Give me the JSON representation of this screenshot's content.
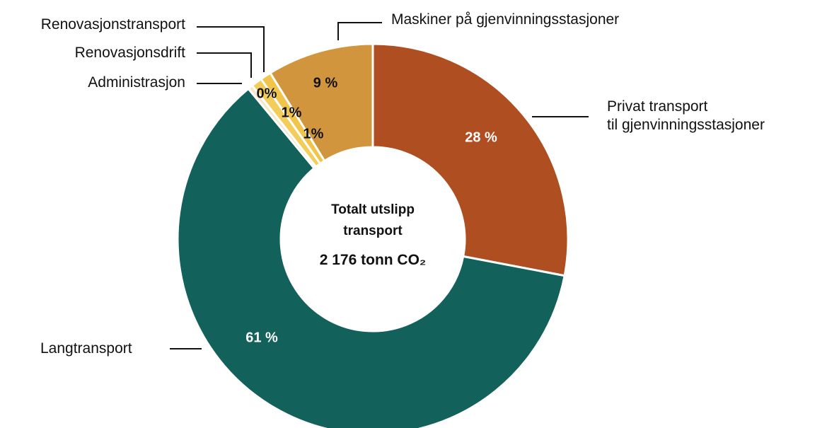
{
  "chart_data": {
    "type": "donut",
    "center_label": "Totalt utslipp\ntransport",
    "total_label": "2 176 tonn CO₂",
    "categories": [
      "Privat transport\ntil gjenvinningsstasjoner",
      "Langtransport",
      "Administrasjon",
      "Renovasjonsdrift",
      "Renovasjonstransport",
      "Maskiner på gjenvinningsstasjoner"
    ],
    "values": [
      28,
      61,
      0.4,
      0.9,
      0.9,
      8.8
    ],
    "value_labels": [
      "28 %",
      "61 %",
      "0%",
      "1%",
      "1%",
      "9 %"
    ],
    "colors": [
      "#ae4e21",
      "#12615a",
      "#f6e7c6",
      "#f3cd5a",
      "#f1c44a",
      "#d1963d"
    ]
  }
}
